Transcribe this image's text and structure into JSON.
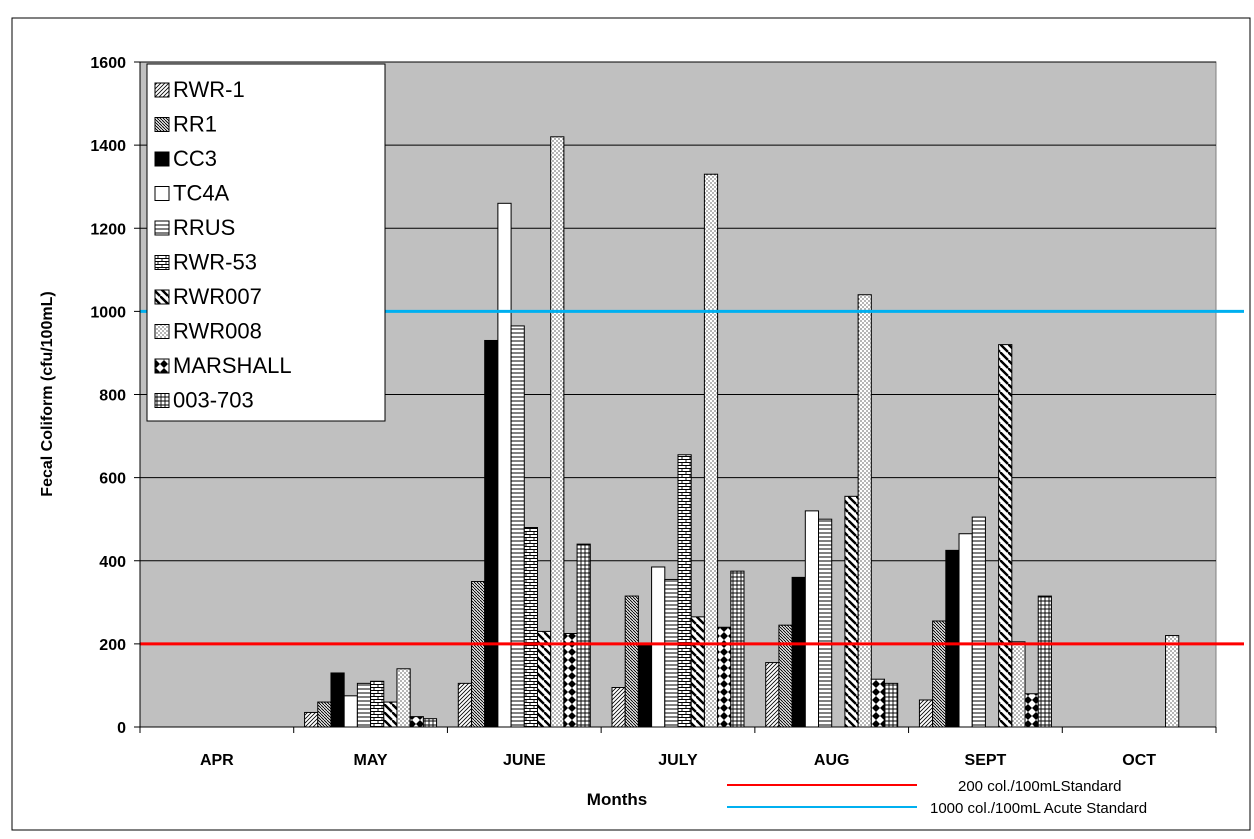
{
  "chart_data": {
    "type": "bar",
    "title": "",
    "xlabel": "Months",
    "ylabel": "Fecal Coliform (cfu/100mL)",
    "ylim": [
      0,
      1600
    ],
    "yticks": [
      0,
      200,
      400,
      600,
      800,
      1000,
      1200,
      1400,
      1600
    ],
    "grid": true,
    "legend_position": "top-left",
    "categories": [
      "APR",
      "MAY",
      "JUNE",
      "JULY",
      "AUG",
      "SEPT",
      "OCT"
    ],
    "series": [
      {
        "name": "RWR-1",
        "pattern": "diag-fine",
        "values": [
          null,
          35,
          105,
          95,
          155,
          65,
          null
        ]
      },
      {
        "name": "RR1",
        "pattern": "diag-dense",
        "values": [
          null,
          60,
          350,
          315,
          245,
          255,
          null
        ]
      },
      {
        "name": "CC3",
        "pattern": "solid-black",
        "values": [
          null,
          130,
          930,
          200,
          360,
          425,
          null
        ]
      },
      {
        "name": "TC4A",
        "pattern": "white",
        "values": [
          null,
          75,
          1260,
          385,
          520,
          465,
          null
        ]
      },
      {
        "name": "RRUS",
        "pattern": "horiz",
        "values": [
          null,
          105,
          965,
          355,
          500,
          505,
          null
        ]
      },
      {
        "name": "RWR-53",
        "pattern": "brick",
        "values": [
          null,
          110,
          480,
          655,
          null,
          null,
          null
        ]
      },
      {
        "name": "RWR007",
        "pattern": "diag-bold",
        "values": [
          null,
          60,
          230,
          265,
          555,
          920,
          null
        ]
      },
      {
        "name": "RWR008",
        "pattern": "dots",
        "values": [
          null,
          140,
          1420,
          1330,
          1040,
          205,
          220
        ]
      },
      {
        "name": "MARSHALL",
        "pattern": "checker",
        "values": [
          null,
          25,
          225,
          240,
          115,
          80,
          null
        ]
      },
      {
        "name": "003-703",
        "pattern": "grid",
        "values": [
          null,
          20,
          440,
          375,
          105,
          315,
          null
        ]
      }
    ],
    "reference_lines": [
      {
        "name": "200 col./100mLStandard",
        "value": 200,
        "color": "#ff0000"
      },
      {
        "name": "1000 col./100mL Acute Standard",
        "value": 1000,
        "color": "#00b0f0"
      }
    ],
    "colors": {
      "plot_background": "#c0c0c0",
      "gridline": "#000000",
      "bar_stroke": "#000000"
    }
  }
}
